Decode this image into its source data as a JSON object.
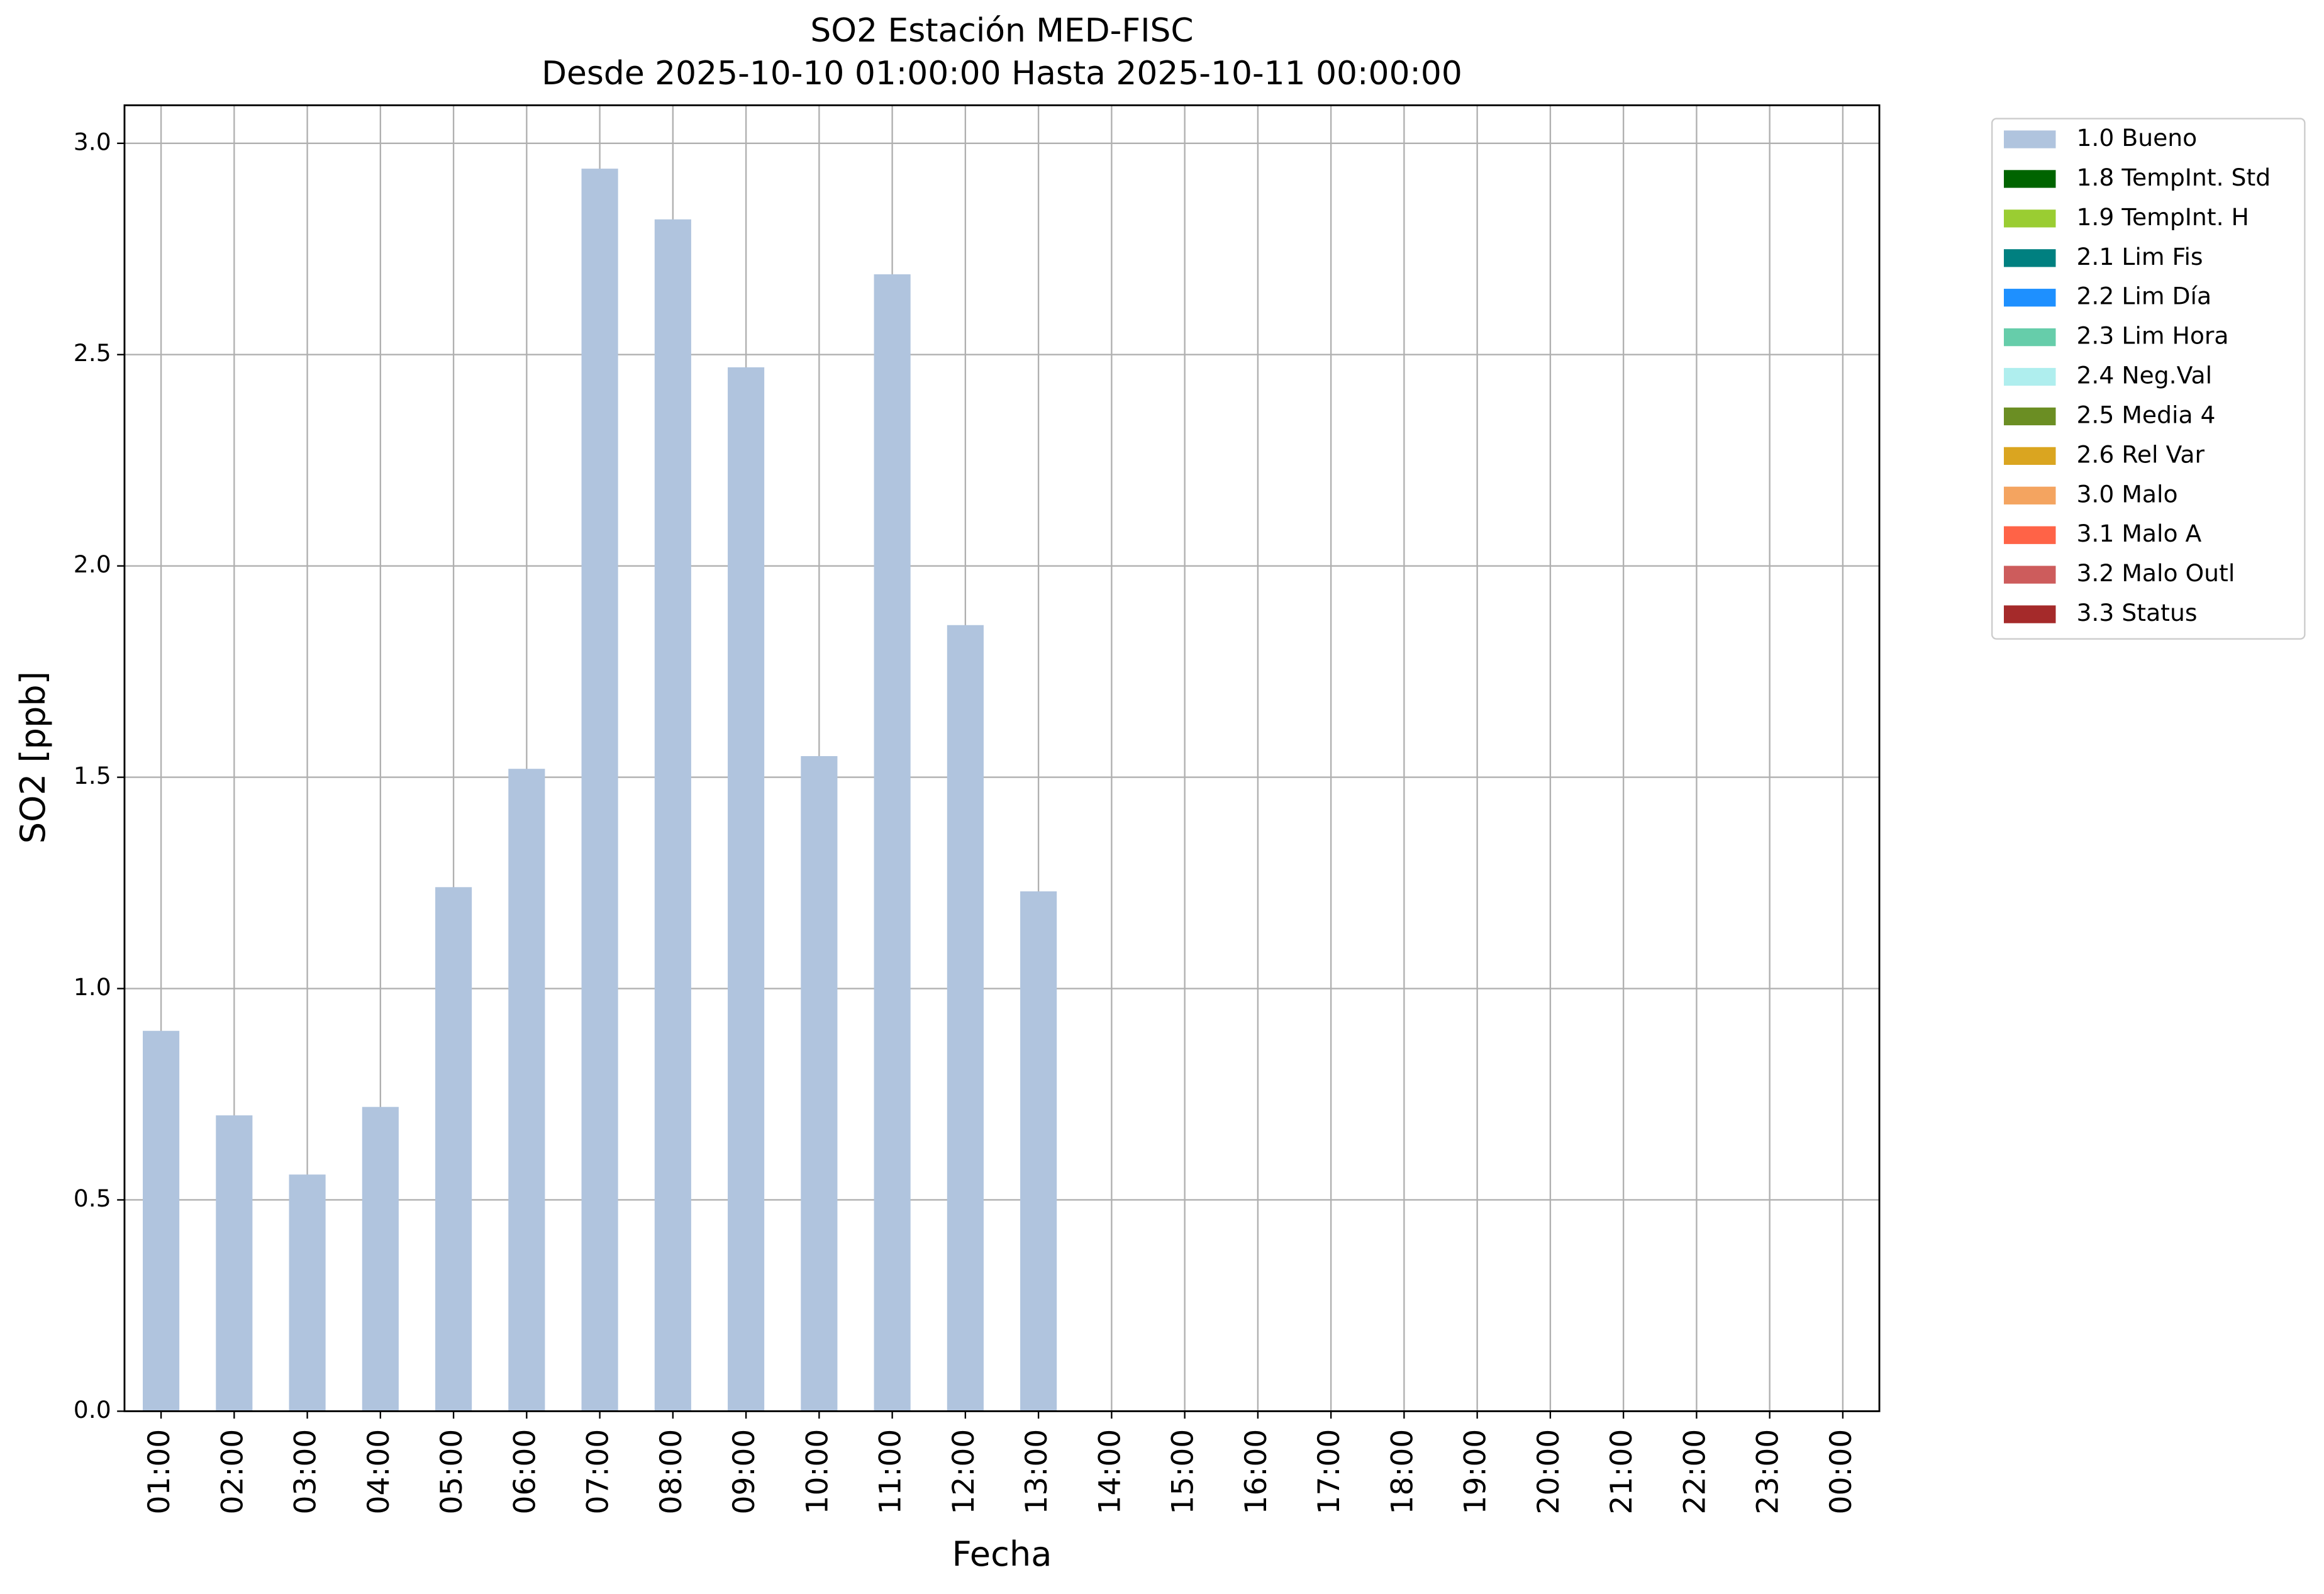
{
  "chart_data": {
    "type": "stacked_bar",
    "title": "SO2 Estación MED-FISC",
    "subtitle": "Desde 2025-10-10 01:00:00 Hasta 2025-10-11 00:00:00",
    "x_label": "Fecha",
    "y_label": "SO2 [ppb]",
    "categories": [
      "01:00",
      "02:00",
      "03:00",
      "04:00",
      "05:00",
      "06:00",
      "07:00",
      "08:00",
      "09:00",
      "10:00",
      "11:00",
      "12:00",
      "13:00",
      "14:00",
      "15:00",
      "16:00",
      "17:00",
      "18:00",
      "19:00",
      "20:00",
      "21:00",
      "22:00",
      "23:00",
      "00:00"
    ],
    "series": [
      {
        "name": "1.0 Bueno",
        "color": "#b0c4de",
        "values": [
          0.9,
          0.7,
          0.56,
          0.72,
          1.24,
          1.52,
          2.94,
          2.82,
          2.47,
          1.55,
          2.69,
          1.86,
          1.23,
          null,
          null,
          null,
          null,
          null,
          null,
          null,
          null,
          null,
          null,
          null
        ]
      },
      {
        "name": "1.8 TempInt. Std",
        "color": "#006400",
        "values": [
          null,
          null,
          null,
          null,
          null,
          null,
          null,
          null,
          null,
          null,
          null,
          null,
          null,
          null,
          null,
          null,
          null,
          null,
          null,
          null,
          null,
          null,
          null,
          null
        ]
      },
      {
        "name": "1.9 TempInt. H",
        "color": "#9acd32",
        "values": [
          null,
          null,
          null,
          null,
          null,
          null,
          null,
          null,
          null,
          null,
          null,
          null,
          null,
          null,
          null,
          null,
          null,
          null,
          null,
          null,
          null,
          null,
          null,
          null
        ]
      },
      {
        "name": "2.1 Lim Fis",
        "color": "#008080",
        "values": [
          null,
          null,
          null,
          null,
          null,
          null,
          null,
          null,
          null,
          null,
          null,
          null,
          null,
          null,
          null,
          null,
          null,
          null,
          null,
          null,
          null,
          null,
          null,
          null
        ]
      },
      {
        "name": "2.2 Lim Día",
        "color": "#1e90ff",
        "values": [
          null,
          null,
          null,
          null,
          null,
          null,
          null,
          null,
          null,
          null,
          null,
          null,
          null,
          null,
          null,
          null,
          null,
          null,
          null,
          null,
          null,
          null,
          null,
          null
        ]
      },
      {
        "name": "2.3 Lim Hora",
        "color": "#66cdaa",
        "values": [
          null,
          null,
          null,
          null,
          null,
          null,
          null,
          null,
          null,
          null,
          null,
          null,
          null,
          null,
          null,
          null,
          null,
          null,
          null,
          null,
          null,
          null,
          null,
          null
        ]
      },
      {
        "name": "2.4 Neg.Val",
        "color": "#afeeee",
        "values": [
          null,
          null,
          null,
          null,
          null,
          null,
          null,
          null,
          null,
          null,
          null,
          null,
          null,
          null,
          null,
          null,
          null,
          null,
          null,
          null,
          null,
          null,
          null,
          null
        ]
      },
      {
        "name": "2.5 Media 4",
        "color": "#6b8e23",
        "values": [
          null,
          null,
          null,
          null,
          null,
          null,
          null,
          null,
          null,
          null,
          null,
          null,
          null,
          null,
          null,
          null,
          null,
          null,
          null,
          null,
          null,
          null,
          null,
          null
        ]
      },
      {
        "name": "2.6 Rel Var",
        "color": "#daa520",
        "values": [
          null,
          null,
          null,
          null,
          null,
          null,
          null,
          null,
          null,
          null,
          null,
          null,
          null,
          null,
          null,
          null,
          null,
          null,
          null,
          null,
          null,
          null,
          null,
          null
        ]
      },
      {
        "name": "3.0 Malo",
        "color": "#f4a460",
        "values": [
          null,
          null,
          null,
          null,
          null,
          null,
          null,
          null,
          null,
          null,
          null,
          null,
          null,
          null,
          null,
          null,
          null,
          null,
          null,
          null,
          null,
          null,
          null,
          null
        ]
      },
      {
        "name": "3.1 Malo A",
        "color": "#ff6347",
        "values": [
          null,
          null,
          null,
          null,
          null,
          null,
          null,
          null,
          null,
          null,
          null,
          null,
          null,
          null,
          null,
          null,
          null,
          null,
          null,
          null,
          null,
          null,
          null,
          null
        ]
      },
      {
        "name": "3.2 Malo Outl",
        "color": "#cd5c5c",
        "values": [
          null,
          null,
          null,
          null,
          null,
          null,
          null,
          null,
          null,
          null,
          null,
          null,
          null,
          null,
          null,
          null,
          null,
          null,
          null,
          null,
          null,
          null,
          null,
          null
        ]
      },
      {
        "name": "3.3 Status",
        "color": "#a52a2a",
        "values": [
          null,
          null,
          null,
          null,
          null,
          null,
          null,
          null,
          null,
          null,
          null,
          null,
          null,
          null,
          null,
          null,
          null,
          null,
          null,
          null,
          null,
          null,
          null,
          null
        ]
      }
    ],
    "ylim": [
      0,
      3.09
    ],
    "yticks": [
      {
        "value": 0,
        "label": "0.0"
      },
      0.5,
      {
        "value": 1,
        "label": "1.0"
      },
      1.5,
      {
        "value": 2,
        "label": "2.0"
      },
      2.5,
      {
        "value": 3,
        "label": "3.0"
      }
    ],
    "grid": true,
    "legend": "outside-right"
  }
}
